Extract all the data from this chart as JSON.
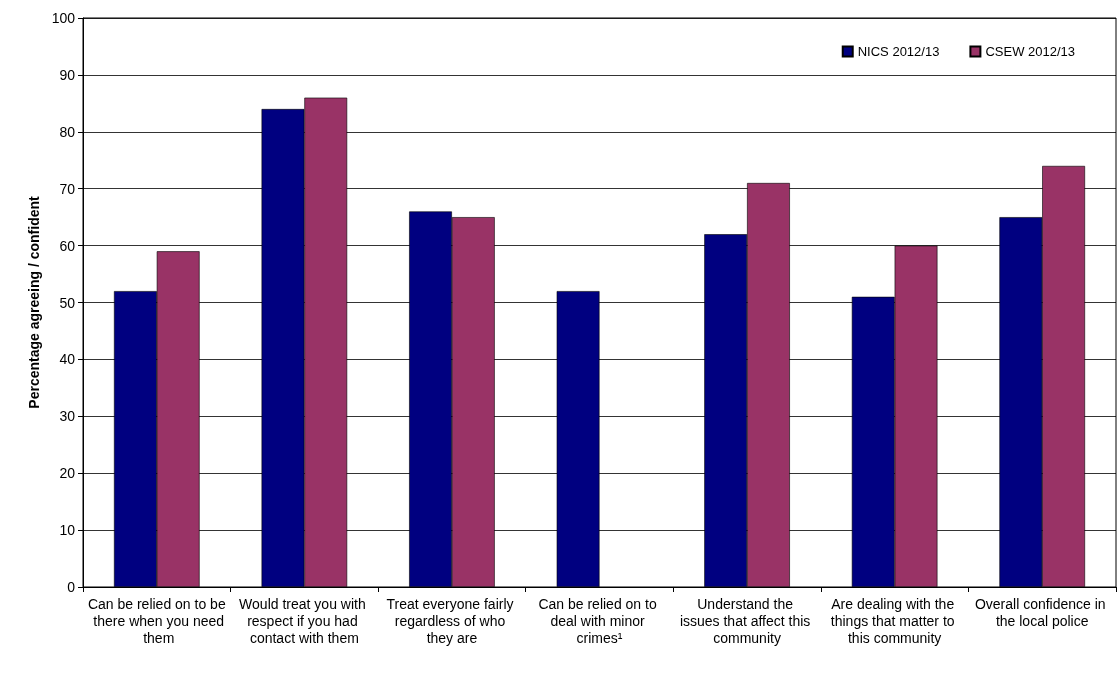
{
  "chart_data": {
    "type": "bar",
    "ylabel": "Percentage agreeing / confident",
    "categories": [
      "Can be relied on to be there when you need them",
      "Would treat you with respect if you had contact with them",
      "Treat everyone fairly regardless of who they are",
      "Can be relied on to deal with minor crimes¹",
      "Understand the issues that affect this community",
      "Are dealing with the things that matter to this community",
      "Overall confidence in the local police"
    ],
    "series": [
      {
        "name": "NICS 2012/13",
        "color": "#000080",
        "values": [
          52,
          84,
          66,
          52,
          62,
          51,
          65
        ]
      },
      {
        "name": "CSEW 2012/13",
        "color": "#993366",
        "values": [
          59,
          86,
          65,
          null,
          71,
          60,
          74
        ]
      }
    ],
    "ylim": [
      0,
      100
    ],
    "yticks": [
      0,
      10,
      20,
      30,
      40,
      50,
      60,
      70,
      80,
      90,
      100
    ],
    "grid": "y",
    "legend": "top right"
  }
}
